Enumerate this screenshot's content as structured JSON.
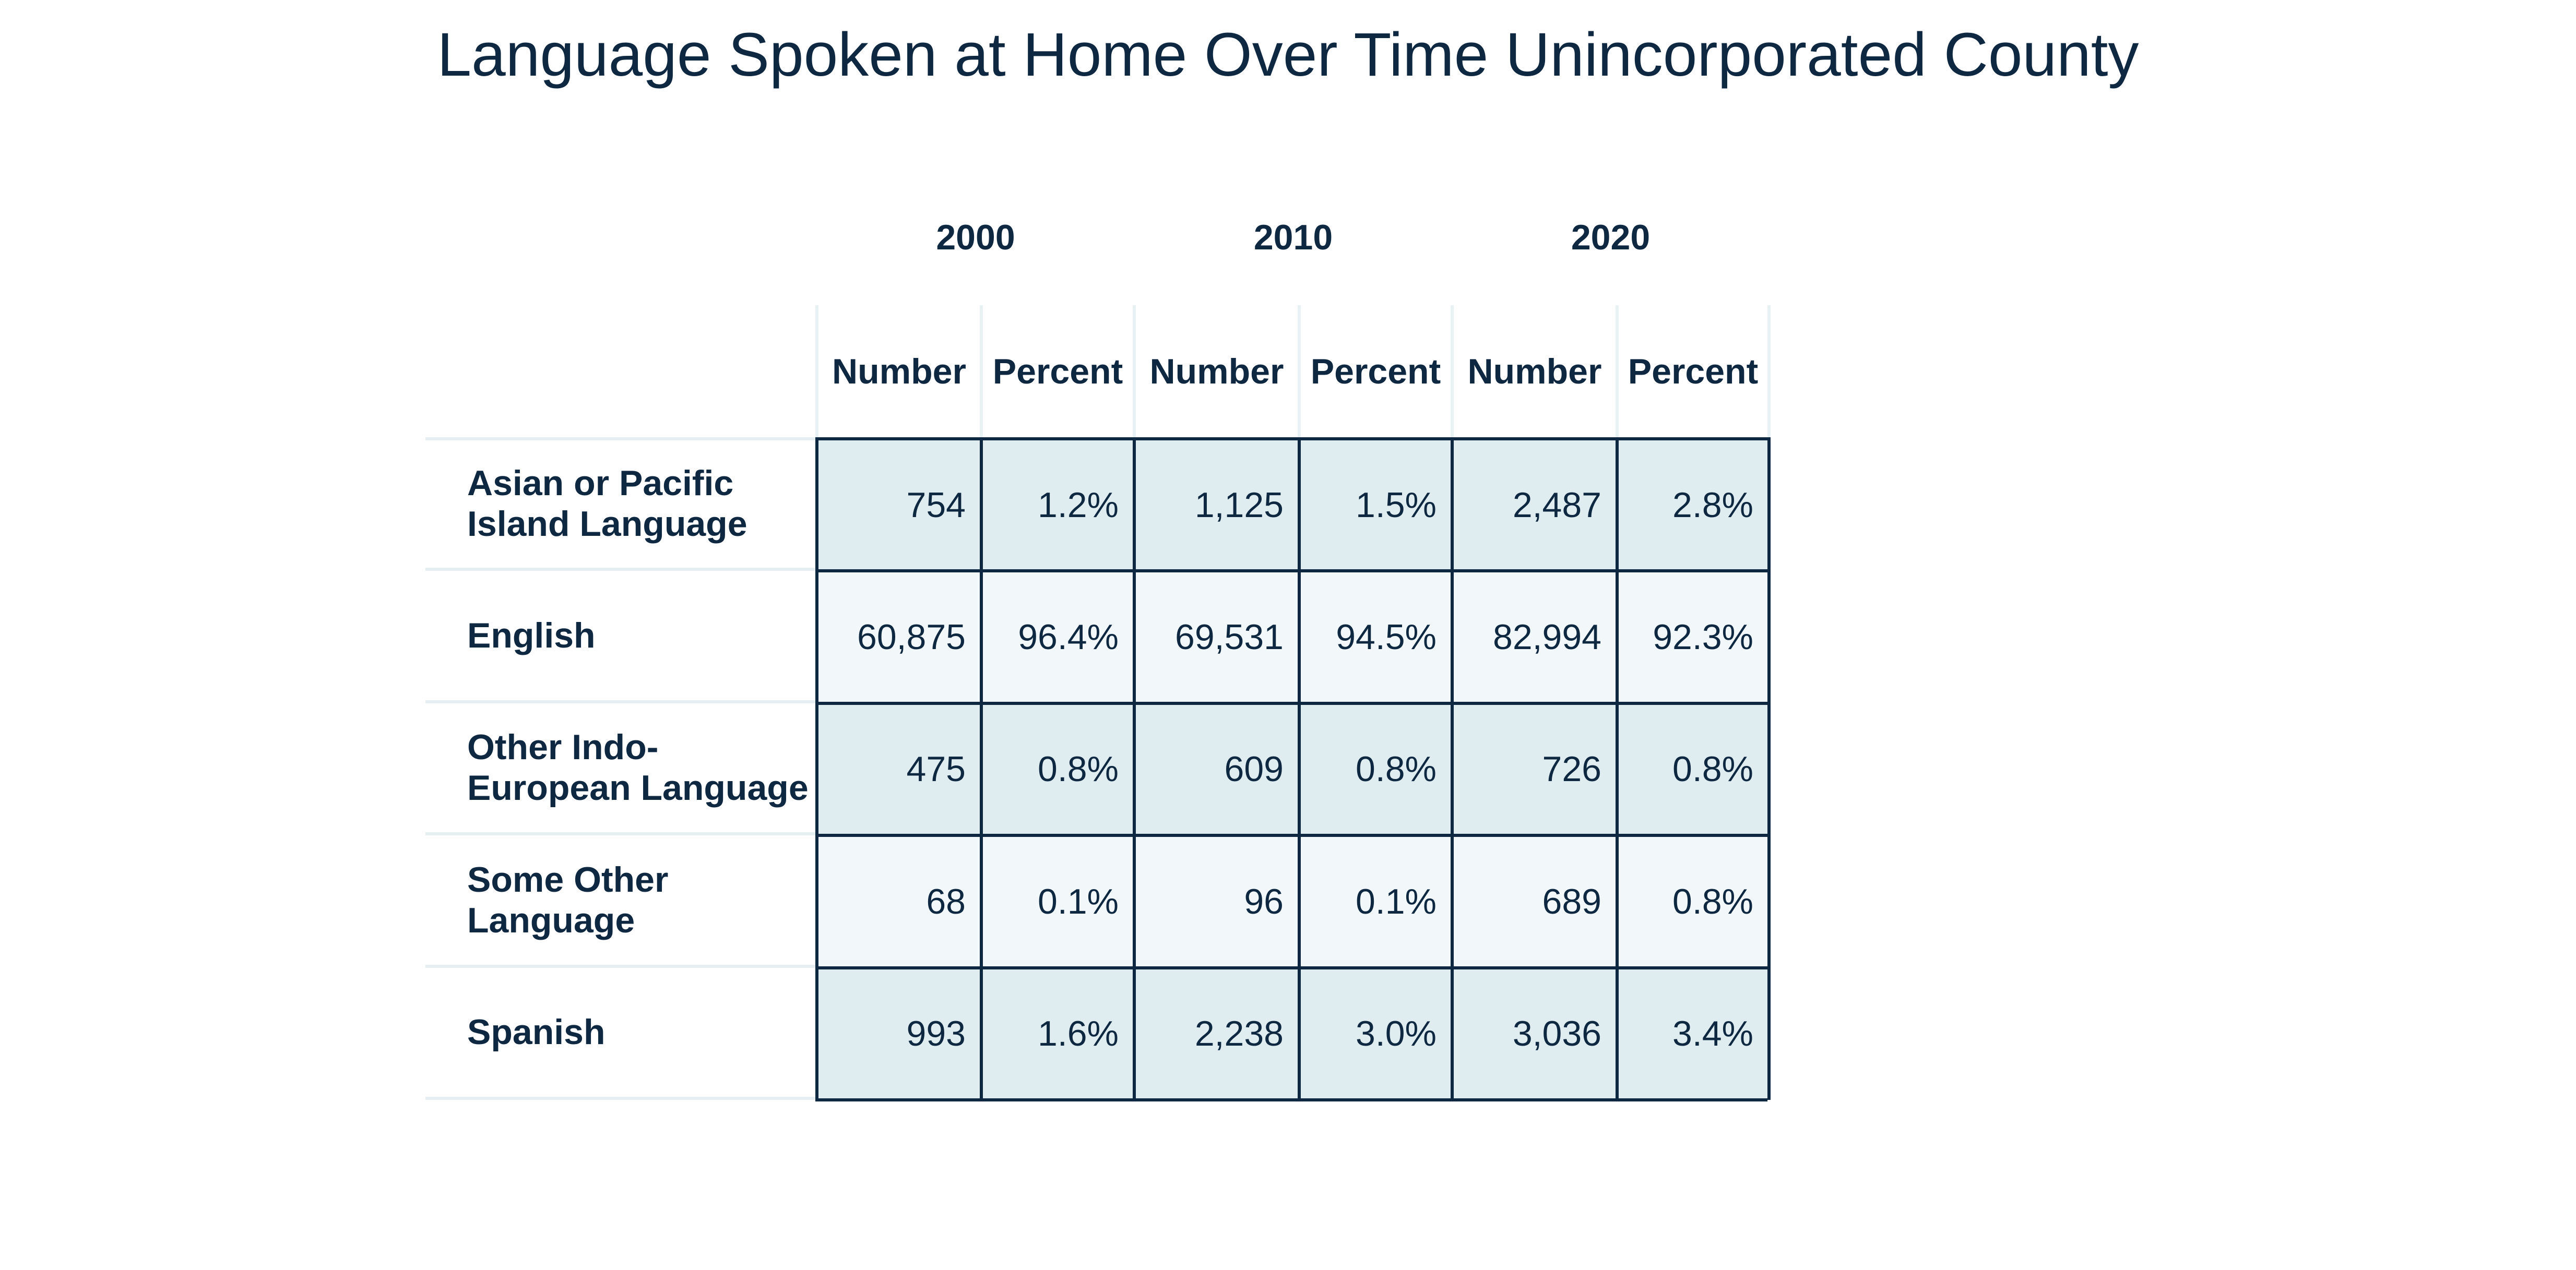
{
  "title": "Language Spoken at Home Over Time Unincorporated County",
  "chart_data": {
    "type": "table",
    "title": "Language Spoken at Home Over Time Unincorporated County",
    "years": [
      "2000",
      "2010",
      "2020"
    ],
    "subheaders": [
      "Number",
      "Percent",
      "Number",
      "Percent",
      "Number",
      "Percent"
    ],
    "rows": [
      {
        "label_lines": [
          "Asian or Pacific",
          "Island Language"
        ],
        "cells": [
          "754",
          "1.2%",
          "1,125",
          "1.5%",
          "2,487",
          "2.8%"
        ]
      },
      {
        "label_lines": [
          "English"
        ],
        "cells": [
          "60,875",
          "96.4%",
          "69,531",
          "94.5%",
          "82,994",
          "92.3%"
        ]
      },
      {
        "label_lines": [
          "Other Indo-",
          "European Language"
        ],
        "cells": [
          "475",
          "0.8%",
          "609",
          "0.8%",
          "726",
          "0.8%"
        ]
      },
      {
        "label_lines": [
          "Some Other",
          "Language"
        ],
        "cells": [
          "68",
          "0.1%",
          "96",
          "0.1%",
          "689",
          "0.8%"
        ]
      },
      {
        "label_lines": [
          "Spanish"
        ],
        "cells": [
          "993",
          "1.6%",
          "2,238",
          "3.0%",
          "3,036",
          "3.4%"
        ]
      }
    ]
  },
  "colors": {
    "text": "#0e2841",
    "shaded_row": "#e0edf0",
    "light_row": "#f2f8f9",
    "grid": "#0e2841"
  }
}
